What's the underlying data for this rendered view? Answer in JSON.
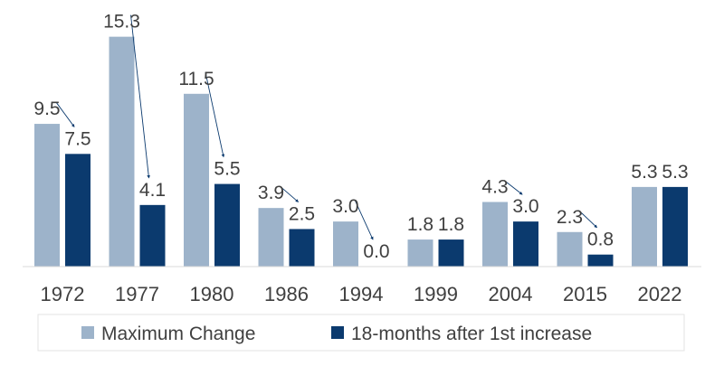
{
  "chart_data": {
    "type": "bar",
    "categories": [
      "1972",
      "1977",
      "1980",
      "1986",
      "1994",
      "1999",
      "2004",
      "2015",
      "2022"
    ],
    "series": [
      {
        "name": "Maximum Change",
        "values": [
          9.5,
          15.3,
          11.5,
          3.9,
          3.0,
          1.8,
          4.3,
          2.3,
          5.3
        ]
      },
      {
        "name": "18-months after 1st increase",
        "values": [
          7.5,
          4.1,
          5.5,
          2.5,
          0.0,
          1.8,
          3.0,
          0.8,
          5.3
        ]
      }
    ],
    "ylim": [
      0,
      16
    ],
    "grid": false,
    "legend_placement": "bottom",
    "arrows": "thin arrows point from each Maximum Change label to the 18-month label, except 1999 and 2022",
    "colors": {
      "Maximum Change": "#9db3ca",
      "18-months after 1st increase": "#0b3a6e",
      "arrow": "#0b3a6e"
    }
  }
}
